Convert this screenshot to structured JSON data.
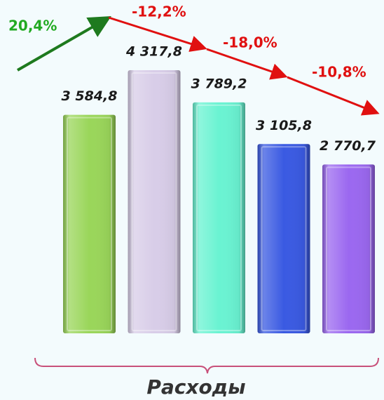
{
  "chart_data": {
    "type": "bar",
    "categories": [
      null,
      null,
      null,
      null,
      null
    ],
    "values": [
      3584.8,
      4317.8,
      3789.2,
      3105.8,
      2770.7
    ],
    "value_labels": [
      "3 584,8",
      "4 317,8",
      "3 789,2",
      "3 105,8",
      "2 770,7"
    ],
    "colors": [
      "#9ad65a",
      "#d8cde8",
      "#6af3d2",
      "#3a5ae2",
      "#9b68f0"
    ],
    "annotations": [
      "20,4%",
      "-12,2%",
      "-18,0%",
      "-10,8%"
    ],
    "x_label": "Расходы"
  }
}
